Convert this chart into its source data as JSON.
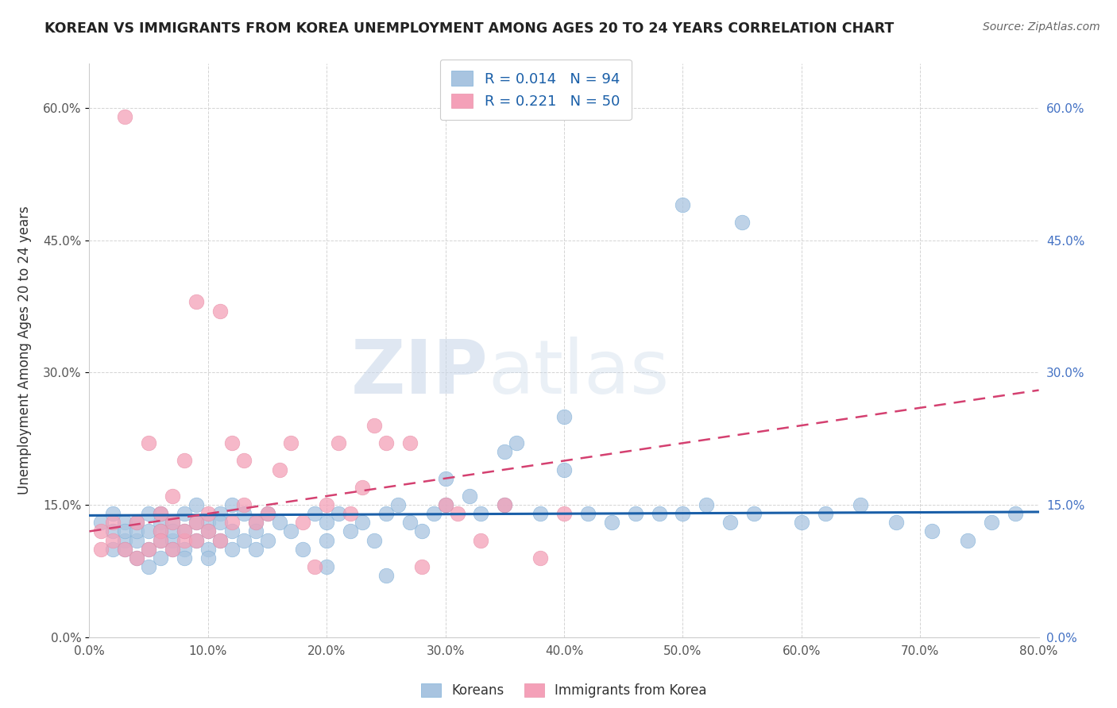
{
  "title": "KOREAN VS IMMIGRANTS FROM KOREA UNEMPLOYMENT AMONG AGES 20 TO 24 YEARS CORRELATION CHART",
  "source": "Source: ZipAtlas.com",
  "ylabel": "Unemployment Among Ages 20 to 24 years",
  "x_label_bottom": "Koreans",
  "x_label_bottom2": "Immigrants from Korea",
  "xlim": [
    0.0,
    0.8
  ],
  "ylim": [
    0.0,
    0.65
  ],
  "xticks": [
    0.0,
    0.1,
    0.2,
    0.3,
    0.4,
    0.5,
    0.6,
    0.7,
    0.8
  ],
  "xticklabels": [
    "0.0%",
    "10.0%",
    "20.0%",
    "30.0%",
    "40.0%",
    "50.0%",
    "60.0%",
    "70.0%",
    "80.0%"
  ],
  "yticks": [
    0.0,
    0.15,
    0.3,
    0.45,
    0.6
  ],
  "yticklabels": [
    "0.0%",
    "15.0%",
    "30.0%",
    "45.0%",
    "60.0%"
  ],
  "blue_color": "#a8c4e0",
  "pink_color": "#f4a0b8",
  "blue_line_color": "#1a5fa8",
  "pink_line_color": "#d44070",
  "R_blue": 0.014,
  "N_blue": 94,
  "R_pink": 0.221,
  "N_pink": 50,
  "background_color": "#ffffff",
  "grid_color": "#d0d0d0",
  "watermark_zip": "ZIP",
  "watermark_atlas": "atlas",
  "blue_scatter_x": [
    0.01,
    0.02,
    0.02,
    0.02,
    0.03,
    0.03,
    0.03,
    0.03,
    0.04,
    0.04,
    0.04,
    0.04,
    0.05,
    0.05,
    0.05,
    0.05,
    0.06,
    0.06,
    0.06,
    0.06,
    0.06,
    0.07,
    0.07,
    0.07,
    0.07,
    0.08,
    0.08,
    0.08,
    0.08,
    0.09,
    0.09,
    0.09,
    0.1,
    0.1,
    0.1,
    0.1,
    0.11,
    0.11,
    0.11,
    0.12,
    0.12,
    0.12,
    0.13,
    0.13,
    0.14,
    0.14,
    0.14,
    0.15,
    0.15,
    0.16,
    0.17,
    0.18,
    0.19,
    0.2,
    0.2,
    0.21,
    0.22,
    0.23,
    0.24,
    0.25,
    0.26,
    0.27,
    0.28,
    0.29,
    0.3,
    0.32,
    0.33,
    0.35,
    0.36,
    0.38,
    0.4,
    0.42,
    0.44,
    0.46,
    0.48,
    0.5,
    0.52,
    0.54,
    0.56,
    0.6,
    0.62,
    0.65,
    0.68,
    0.71,
    0.74,
    0.76,
    0.78,
    0.35,
    0.4,
    0.5,
    0.55,
    0.3,
    0.2,
    0.25
  ],
  "blue_scatter_y": [
    0.13,
    0.12,
    0.1,
    0.14,
    0.11,
    0.13,
    0.12,
    0.1,
    0.13,
    0.11,
    0.09,
    0.12,
    0.14,
    0.1,
    0.12,
    0.08,
    0.13,
    0.11,
    0.14,
    0.12,
    0.09,
    0.13,
    0.11,
    0.1,
    0.12,
    0.14,
    0.1,
    0.12,
    0.09,
    0.13,
    0.15,
    0.11,
    0.13,
    0.1,
    0.12,
    0.09,
    0.14,
    0.11,
    0.13,
    0.15,
    0.1,
    0.12,
    0.14,
    0.11,
    0.13,
    0.1,
    0.12,
    0.14,
    0.11,
    0.13,
    0.12,
    0.1,
    0.14,
    0.13,
    0.11,
    0.14,
    0.12,
    0.13,
    0.11,
    0.14,
    0.15,
    0.13,
    0.12,
    0.14,
    0.15,
    0.16,
    0.14,
    0.15,
    0.22,
    0.14,
    0.19,
    0.14,
    0.13,
    0.14,
    0.14,
    0.14,
    0.15,
    0.13,
    0.14,
    0.13,
    0.14,
    0.15,
    0.13,
    0.12,
    0.11,
    0.13,
    0.14,
    0.21,
    0.25,
    0.49,
    0.47,
    0.18,
    0.08,
    0.07
  ],
  "pink_scatter_x": [
    0.01,
    0.01,
    0.02,
    0.02,
    0.03,
    0.03,
    0.04,
    0.04,
    0.05,
    0.05,
    0.06,
    0.06,
    0.06,
    0.07,
    0.07,
    0.07,
    0.08,
    0.08,
    0.08,
    0.09,
    0.09,
    0.09,
    0.1,
    0.1,
    0.11,
    0.11,
    0.12,
    0.12,
    0.13,
    0.13,
    0.14,
    0.15,
    0.16,
    0.17,
    0.18,
    0.19,
    0.2,
    0.21,
    0.22,
    0.23,
    0.24,
    0.25,
    0.27,
    0.28,
    0.3,
    0.31,
    0.33,
    0.35,
    0.38,
    0.4
  ],
  "pink_scatter_y": [
    0.1,
    0.12,
    0.11,
    0.13,
    0.1,
    0.59,
    0.09,
    0.13,
    0.1,
    0.22,
    0.12,
    0.14,
    0.11,
    0.1,
    0.16,
    0.13,
    0.11,
    0.2,
    0.12,
    0.11,
    0.13,
    0.38,
    0.14,
    0.12,
    0.37,
    0.11,
    0.22,
    0.13,
    0.15,
    0.2,
    0.13,
    0.14,
    0.19,
    0.22,
    0.13,
    0.08,
    0.15,
    0.22,
    0.14,
    0.17,
    0.24,
    0.22,
    0.22,
    0.08,
    0.15,
    0.14,
    0.11,
    0.15,
    0.09,
    0.14
  ]
}
